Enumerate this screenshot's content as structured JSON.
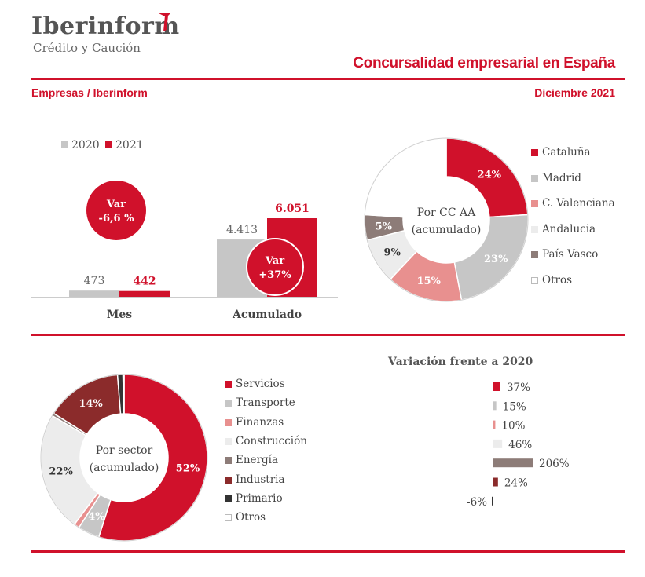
{
  "header": {
    "logo_name": "Iberinform",
    "logo_sub": "Crédito y Caución",
    "title": "Concursalidad empresarial en España",
    "source": "Empresas / Iberinform",
    "date": "Diciembre 2021"
  },
  "colors": {
    "red": "#d0112b",
    "gray": "#c6c6c6",
    "pink": "#e8908f",
    "light": "#ececec",
    "taupe": "#8d7c78",
    "maroon": "#8b2b2b",
    "dark": "#333333",
    "white": "#ffffff"
  },
  "chart_data": [
    {
      "type": "bar",
      "categories": [
        "Mes",
        "Acumulado"
      ],
      "series": [
        {
          "name": "2020",
          "values": [
            473,
            4413
          ],
          "labels": [
            "473",
            "4.413"
          ],
          "color": "#c6c6c6"
        },
        {
          "name": "2021",
          "values": [
            442,
            6051
          ],
          "labels": [
            "442",
            "6.051"
          ],
          "color": "#d0112b"
        }
      ],
      "annotations": [
        {
          "line1": "Var",
          "line2": "-6,6 %"
        },
        {
          "line1": "Var",
          "line2": "+37%"
        }
      ]
    },
    {
      "type": "pie",
      "center_label": [
        "Por CC AA",
        "(acumulado)"
      ],
      "labels": [
        "Cataluña",
        "Madrid",
        "C. Valenciana",
        "Andalucia",
        "País Vasco",
        "Otros"
      ],
      "values": [
        24,
        23,
        15,
        9,
        5,
        24
      ],
      "display": [
        "24%",
        "23%",
        "15%",
        "9%",
        "5%",
        ""
      ],
      "colors": [
        "#d0112b",
        "#c6c6c6",
        "#e8908f",
        "#ececec",
        "#8d7c78",
        "#ffffff"
      ]
    },
    {
      "type": "pie",
      "center_label": [
        "Por sector",
        "(acumulado)"
      ],
      "labels": [
        "Servicios",
        "Transporte",
        "Finanzas",
        "Construcción",
        "Energía",
        "Industria",
        "Primario",
        "Otros"
      ],
      "values": [
        52,
        4,
        1,
        22,
        0.5,
        14,
        1,
        0.2
      ],
      "display": [
        "52%",
        "4%",
        "",
        "22%",
        "",
        "14%",
        "",
        ""
      ],
      "colors": [
        "#d0112b",
        "#c6c6c6",
        "#e8908f",
        "#ececec",
        "#8d7c78",
        "#8b2b2b",
        "#333333",
        "#ffffff"
      ]
    },
    {
      "type": "bar",
      "title": "Variación frente a 2020",
      "categories": [
        "Servicios",
        "Transporte",
        "Finanzas",
        "Construcción",
        "Energía",
        "Industria",
        "Primario"
      ],
      "values": [
        37,
        15,
        10,
        46,
        206,
        24,
        -6
      ],
      "labels": [
        "37%",
        "15%",
        "10%",
        "46%",
        "206%",
        "24%",
        "-6%"
      ],
      "colors": [
        "#d0112b",
        "#c6c6c6",
        "#e8908f",
        "#ececec",
        "#8d7c78",
        "#8b2b2b",
        "#333333"
      ]
    }
  ]
}
